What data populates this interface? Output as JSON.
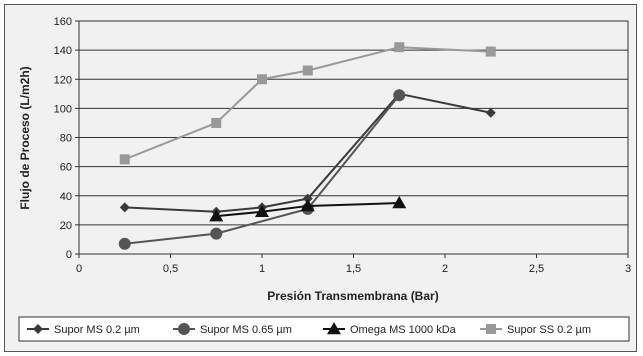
{
  "chart_data": {
    "type": "line",
    "xlabel": "Presión Transmembrana (Bar)",
    "ylabel": "Flujo de Proceso (L/m2h)",
    "xlim": [
      0,
      3
    ],
    "ylim": [
      0,
      160
    ],
    "x_ticks": [
      0,
      0.5,
      1,
      1.5,
      2,
      2.5,
      3
    ],
    "x_tick_labels": [
      "0",
      "0,5",
      "1",
      "1,5",
      "2",
      "2,5",
      "3"
    ],
    "y_ticks": [
      0,
      20,
      40,
      60,
      80,
      100,
      120,
      140,
      160
    ],
    "y_tick_labels": [
      "0",
      "20",
      "40",
      "60",
      "80",
      "100",
      "120",
      "140",
      "160"
    ],
    "grid": "horizontal",
    "legend_position": "bottom",
    "series": [
      {
        "name": "Supor MS 0.2 µm",
        "marker": "diamond",
        "color": "#3a3a3a",
        "x": [
          0.25,
          0.75,
          1,
          1.25,
          1.75,
          2.25
        ],
        "y": [
          32,
          29,
          32,
          38,
          110,
          97
        ]
      },
      {
        "name": "Supor MS 0.65 µm",
        "marker": "circle",
        "color": "#555555",
        "x": [
          0.25,
          0.75,
          1.25,
          1.75
        ],
        "y": [
          7,
          14,
          31,
          109
        ]
      },
      {
        "name": "Omega MS 1000 kDa",
        "marker": "triangle",
        "color": "#111111",
        "x": [
          0.75,
          1,
          1.25,
          1.75
        ],
        "y": [
          26,
          29,
          33,
          35
        ]
      },
      {
        "name": "Supor SS 0.2 µm",
        "marker": "square",
        "color": "#999999",
        "x": [
          0.25,
          0.75,
          1,
          1.25,
          1.75,
          2.25
        ],
        "y": [
          65,
          90,
          120,
          126,
          142,
          139
        ]
      }
    ]
  }
}
